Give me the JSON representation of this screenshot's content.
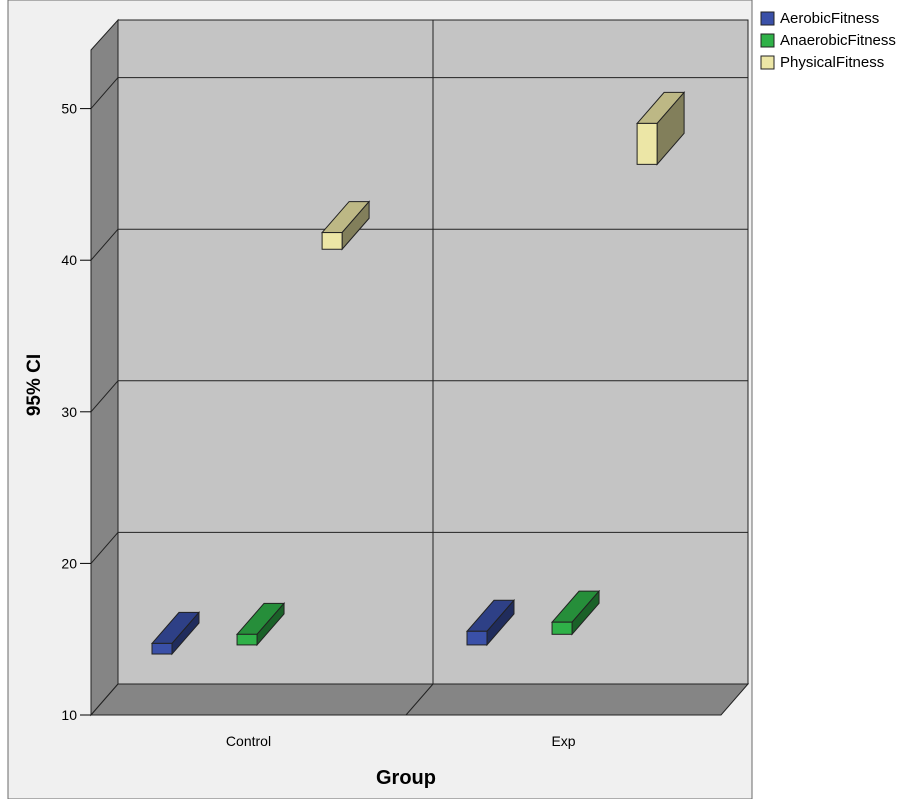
{
  "chart_data": {
    "type": "bar",
    "xlabel": "Group",
    "ylabel": "95% CI",
    "categories": [
      "Control",
      "Exp"
    ],
    "ylim": [
      10,
      53.8
    ],
    "yticks": [
      10,
      20,
      30,
      40,
      50
    ],
    "grid": true,
    "legend_position": "right",
    "series": [
      {
        "name": "AerobicFitness",
        "color": "#3a50a8",
        "low": [
          13.0,
          13.6
        ],
        "high": [
          13.7,
          14.5
        ]
      },
      {
        "name": "AnaerobicFitness",
        "color": "#2fb148",
        "low": [
          13.6,
          14.3
        ],
        "high": [
          14.3,
          15.1
        ]
      },
      {
        "name": "PhysicalFitness",
        "color": "#ece6a6",
        "low": [
          39.7,
          45.3
        ],
        "high": [
          40.8,
          48.0
        ]
      }
    ]
  }
}
